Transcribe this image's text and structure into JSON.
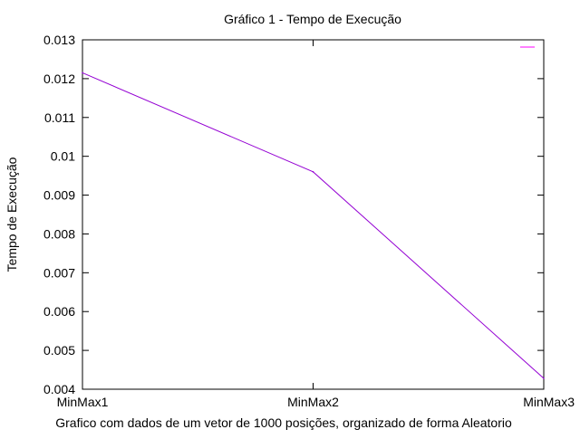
{
  "chart_data": {
    "type": "line",
    "title": "Gráfico 1 - Tempo de Execução",
    "xlabel": "Grafico com dados de um vetor de 1000 posições, organizado de forma Aleatorio",
    "ylabel": "Tempo de Execução",
    "categories": [
      "MinMax1",
      "MinMax2",
      "MinMax3"
    ],
    "ylim": [
      0.004,
      0.013
    ],
    "yticks": [
      "0.004",
      "0.005",
      "0.006",
      "0.007",
      "0.008",
      "0.009",
      "0.01",
      "0.011",
      "0.012",
      "0.013"
    ],
    "series": [
      {
        "values": [
          0.01215,
          0.0096,
          0.00428
        ],
        "color": "#9400d3"
      }
    ],
    "legend_position": "top-right",
    "legend_color": "#ff00ff",
    "grid": false
  }
}
